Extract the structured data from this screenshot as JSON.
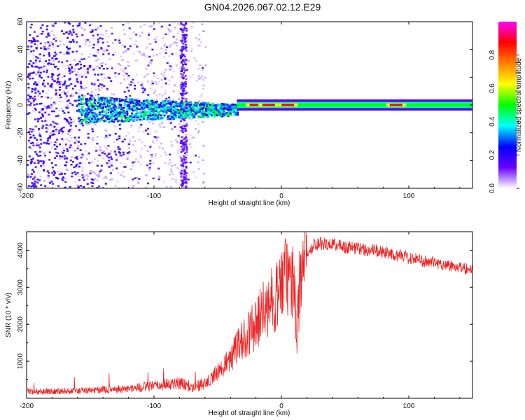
{
  "title": "GN04.2026.067.02.12.E29",
  "chart_data": [
    {
      "type": "heatmap",
      "title": "GN04.2026.067.02.12.E29",
      "xlabel": "Height of straight line (km)",
      "ylabel": "Frequency (Hz)",
      "xlim": [
        -200,
        150
      ],
      "ylim": [
        -60,
        60
      ],
      "xticks": [
        -200,
        -100,
        0,
        100
      ],
      "yticks": [
        -60,
        -40,
        -20,
        0,
        20,
        40,
        60
      ],
      "xtick_labels": [
        "-200",
        "-100",
        "0",
        "100"
      ],
      "ytick_labels": [
        "-60",
        "-40",
        "-20",
        "0",
        "20",
        "40",
        "60"
      ],
      "colorbar": {
        "label": "Normalized spectral amplitude",
        "range": [
          0,
          1
        ],
        "ticks": [
          0.0,
          0.2,
          0.4,
          0.6,
          0.8
        ],
        "tick_labels": [
          "0.0",
          "0.2",
          "0.4",
          "0.6",
          "0.8"
        ],
        "colormap": [
          "#ffffff",
          "#6a00ff",
          "#0000ff",
          "#00ffff",
          "#00ff00",
          "#ffff00",
          "#ff8000",
          "#ff0000",
          "#ff00ff"
        ]
      },
      "features": {
        "noise_region_x": [
          -200,
          -60
        ],
        "noise_column_x": [
          -80,
          -75
        ],
        "central_band_freq": 0,
        "band_halfwidth_hz_near": 2,
        "band_halfwidth_hz_far": 6,
        "hot_spots_x": [
          -20,
          -10,
          5,
          90
        ]
      }
    },
    {
      "type": "line",
      "xlabel": "Height of straight line (km)",
      "ylabel": "SNR (10 * v/v)",
      "xlim": [
        -200,
        150
      ],
      "ylim": [
        0,
        4500
      ],
      "xticks": [
        -200,
        -100,
        0,
        100
      ],
      "yticks": [
        1000,
        2000,
        3000,
        4000
      ],
      "xtick_labels": [
        "-200",
        "-100",
        "0",
        "100"
      ],
      "ytick_labels": [
        "1000",
        "2000",
        "3000",
        "4000"
      ],
      "color": "#ee2222",
      "series": [
        {
          "name": "SNR",
          "x": [
            -200,
            -180,
            -160,
            -140,
            -120,
            -100,
            -90,
            -80,
            -70,
            -60,
            -50,
            -40,
            -30,
            -20,
            -15,
            -10,
            -5,
            0,
            5,
            10,
            12,
            15,
            20,
            25,
            30,
            40,
            60,
            80,
            100,
            120,
            140,
            150
          ],
          "values": [
            180,
            190,
            200,
            230,
            260,
            330,
            380,
            420,
            300,
            400,
            700,
            1100,
            1600,
            2000,
            2300,
            2500,
            2750,
            3100,
            3300,
            3050,
            1600,
            3500,
            3900,
            4150,
            4200,
            4150,
            4050,
            3950,
            3800,
            3650,
            3550,
            3450
          ]
        }
      ]
    }
  ]
}
